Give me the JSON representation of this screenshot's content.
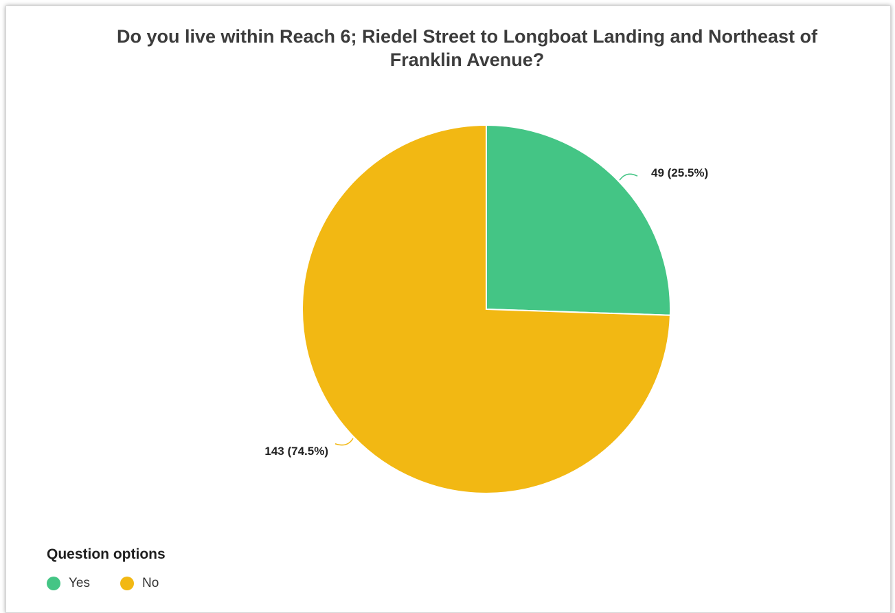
{
  "chart_data": {
    "type": "pie",
    "title_line1": "Do you live within Reach 6; Riedel Street to Longboat Landing and Northeast of",
    "title_line2": "Franklin Avenue?",
    "slices": [
      {
        "name": "Yes",
        "value": 49,
        "percent": 25.5,
        "label": "49 (25.5%)",
        "color": "#44c585"
      },
      {
        "name": "No",
        "value": 143,
        "percent": 74.5,
        "label": "143 (74.5%)",
        "color": "#f2b813"
      }
    ],
    "legend": {
      "title": "Question options",
      "placement": "bottom-left",
      "items": [
        {
          "label": "Yes",
          "color": "#44c585"
        },
        {
          "label": "No",
          "color": "#f2b813"
        }
      ]
    }
  }
}
